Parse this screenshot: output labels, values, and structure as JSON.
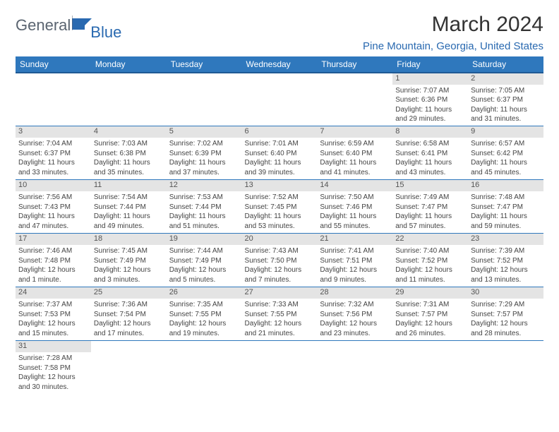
{
  "logo": {
    "part1": "General",
    "part2": "Blue"
  },
  "title": "March 2024",
  "location": "Pine Mountain, Georgia, United States",
  "colors": {
    "header_bg": "#2f78bd",
    "header_border": "#1f5a95",
    "daynum_bg": "#e4e4e4",
    "row_border": "#2f78bd",
    "location_color": "#2969b0"
  },
  "weekdays": [
    "Sunday",
    "Monday",
    "Tuesday",
    "Wednesday",
    "Thursday",
    "Friday",
    "Saturday"
  ],
  "weeks": [
    [
      null,
      null,
      null,
      null,
      null,
      {
        "n": "1",
        "sunrise": "7:07 AM",
        "sunset": "6:36 PM",
        "daylight": "11 hours and 29 minutes."
      },
      {
        "n": "2",
        "sunrise": "7:05 AM",
        "sunset": "6:37 PM",
        "daylight": "11 hours and 31 minutes."
      }
    ],
    [
      {
        "n": "3",
        "sunrise": "7:04 AM",
        "sunset": "6:37 PM",
        "daylight": "11 hours and 33 minutes."
      },
      {
        "n": "4",
        "sunrise": "7:03 AM",
        "sunset": "6:38 PM",
        "daylight": "11 hours and 35 minutes."
      },
      {
        "n": "5",
        "sunrise": "7:02 AM",
        "sunset": "6:39 PM",
        "daylight": "11 hours and 37 minutes."
      },
      {
        "n": "6",
        "sunrise": "7:01 AM",
        "sunset": "6:40 PM",
        "daylight": "11 hours and 39 minutes."
      },
      {
        "n": "7",
        "sunrise": "6:59 AM",
        "sunset": "6:40 PM",
        "daylight": "11 hours and 41 minutes."
      },
      {
        "n": "8",
        "sunrise": "6:58 AM",
        "sunset": "6:41 PM",
        "daylight": "11 hours and 43 minutes."
      },
      {
        "n": "9",
        "sunrise": "6:57 AM",
        "sunset": "6:42 PM",
        "daylight": "11 hours and 45 minutes."
      }
    ],
    [
      {
        "n": "10",
        "sunrise": "7:56 AM",
        "sunset": "7:43 PM",
        "daylight": "11 hours and 47 minutes."
      },
      {
        "n": "11",
        "sunrise": "7:54 AM",
        "sunset": "7:44 PM",
        "daylight": "11 hours and 49 minutes."
      },
      {
        "n": "12",
        "sunrise": "7:53 AM",
        "sunset": "7:44 PM",
        "daylight": "11 hours and 51 minutes."
      },
      {
        "n": "13",
        "sunrise": "7:52 AM",
        "sunset": "7:45 PM",
        "daylight": "11 hours and 53 minutes."
      },
      {
        "n": "14",
        "sunrise": "7:50 AM",
        "sunset": "7:46 PM",
        "daylight": "11 hours and 55 minutes."
      },
      {
        "n": "15",
        "sunrise": "7:49 AM",
        "sunset": "7:47 PM",
        "daylight": "11 hours and 57 minutes."
      },
      {
        "n": "16",
        "sunrise": "7:48 AM",
        "sunset": "7:47 PM",
        "daylight": "11 hours and 59 minutes."
      }
    ],
    [
      {
        "n": "17",
        "sunrise": "7:46 AM",
        "sunset": "7:48 PM",
        "daylight": "12 hours and 1 minute."
      },
      {
        "n": "18",
        "sunrise": "7:45 AM",
        "sunset": "7:49 PM",
        "daylight": "12 hours and 3 minutes."
      },
      {
        "n": "19",
        "sunrise": "7:44 AM",
        "sunset": "7:49 PM",
        "daylight": "12 hours and 5 minutes."
      },
      {
        "n": "20",
        "sunrise": "7:43 AM",
        "sunset": "7:50 PM",
        "daylight": "12 hours and 7 minutes."
      },
      {
        "n": "21",
        "sunrise": "7:41 AM",
        "sunset": "7:51 PM",
        "daylight": "12 hours and 9 minutes."
      },
      {
        "n": "22",
        "sunrise": "7:40 AM",
        "sunset": "7:52 PM",
        "daylight": "12 hours and 11 minutes."
      },
      {
        "n": "23",
        "sunrise": "7:39 AM",
        "sunset": "7:52 PM",
        "daylight": "12 hours and 13 minutes."
      }
    ],
    [
      {
        "n": "24",
        "sunrise": "7:37 AM",
        "sunset": "7:53 PM",
        "daylight": "12 hours and 15 minutes."
      },
      {
        "n": "25",
        "sunrise": "7:36 AM",
        "sunset": "7:54 PM",
        "daylight": "12 hours and 17 minutes."
      },
      {
        "n": "26",
        "sunrise": "7:35 AM",
        "sunset": "7:55 PM",
        "daylight": "12 hours and 19 minutes."
      },
      {
        "n": "27",
        "sunrise": "7:33 AM",
        "sunset": "7:55 PM",
        "daylight": "12 hours and 21 minutes."
      },
      {
        "n": "28",
        "sunrise": "7:32 AM",
        "sunset": "7:56 PM",
        "daylight": "12 hours and 23 minutes."
      },
      {
        "n": "29",
        "sunrise": "7:31 AM",
        "sunset": "7:57 PM",
        "daylight": "12 hours and 26 minutes."
      },
      {
        "n": "30",
        "sunrise": "7:29 AM",
        "sunset": "7:57 PM",
        "daylight": "12 hours and 28 minutes."
      }
    ],
    [
      {
        "n": "31",
        "sunrise": "7:28 AM",
        "sunset": "7:58 PM",
        "daylight": "12 hours and 30 minutes."
      },
      null,
      null,
      null,
      null,
      null,
      null
    ]
  ],
  "labels": {
    "sunrise": "Sunrise: ",
    "sunset": "Sunset: ",
    "daylight": "Daylight: "
  }
}
